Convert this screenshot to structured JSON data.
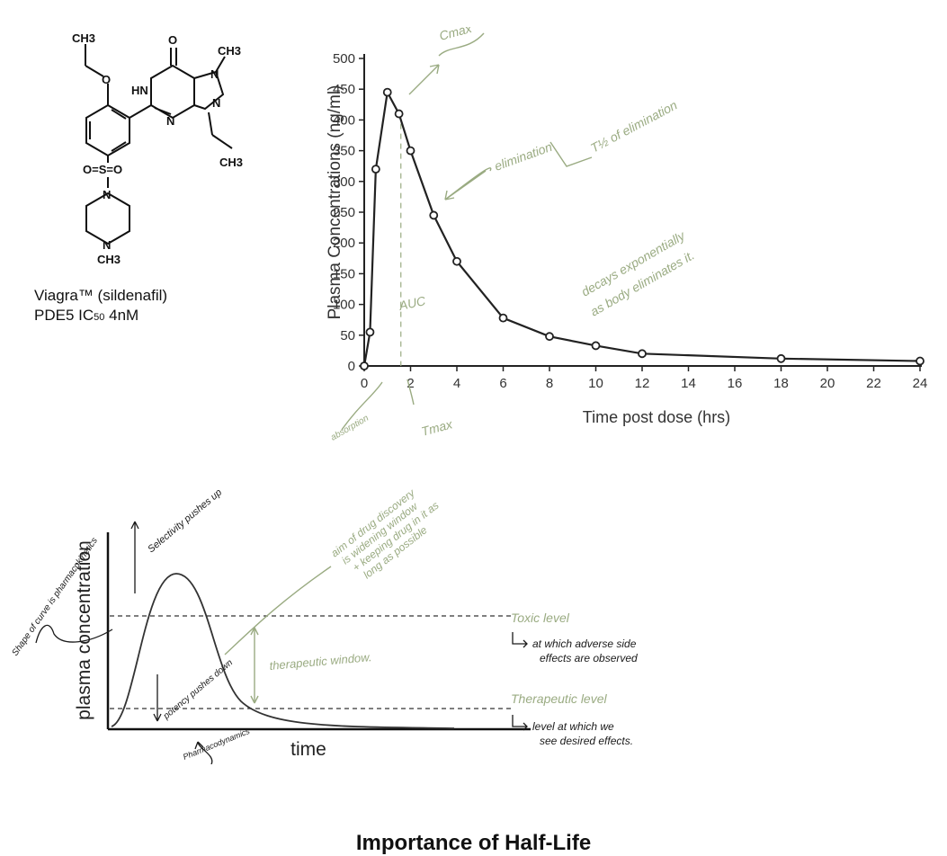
{
  "molecule": {
    "caption_line1": "Viagra™ (sildenafil)",
    "caption_line2_prefix": "PDE5 IC",
    "caption_line2_sub": "50",
    "caption_line2_suffix": " 4nM",
    "atoms": {
      "ch3_top": "CH3",
      "o_ether": "O",
      "o_carbonyl": "O",
      "hn": "HN",
      "n1": "N",
      "n2": "N",
      "n_methyl": "N",
      "ch3_methyl": "CH3",
      "ch3_propyl": "CH3",
      "sulfonyl": "O=S=O",
      "n_pip1": "N",
      "n_pip2": "N",
      "ch3_pip": "CH3"
    }
  },
  "pk_chart": {
    "annotations": {
      "cmax": "Cmax",
      "elimination": "elimination",
      "half_life": "T½ of elimination",
      "decays": "decays exponentially",
      "decays2": "as body eliminates it.",
      "auc": "AUC",
      "absorption": "absorption",
      "tmax": "Tmax"
    }
  },
  "chart_data": [
    {
      "type": "line",
      "title": "",
      "xlabel": "Time post dose (hrs)",
      "ylabel": "Plasma Concentrations (ng/ml)",
      "xlim": [
        0,
        24
      ],
      "ylim": [
        0,
        500
      ],
      "xticks": [
        0,
        2,
        4,
        6,
        8,
        10,
        12,
        14,
        16,
        18,
        20,
        22,
        24
      ],
      "yticks": [
        0,
        50,
        100,
        150,
        200,
        250,
        300,
        350,
        400,
        450,
        500
      ],
      "grid": false,
      "x": [
        0,
        0.25,
        0.5,
        1,
        1.5,
        2,
        3,
        4,
        6,
        8,
        10,
        12,
        18,
        24
      ],
      "y": [
        0,
        55,
        320,
        445,
        410,
        350,
        245,
        170,
        78,
        48,
        33,
        20,
        12,
        8
      ]
    },
    {
      "type": "line",
      "xlabel": "time",
      "ylabel": "plasma concentration",
      "grid": false,
      "levels": [
        {
          "name": "Toxic level",
          "note1": "at which adverse side",
          "note2": "effects are observed"
        },
        {
          "name": "Therapeutic level",
          "note1": "level at which we",
          "note2": "see desired effects."
        }
      ],
      "annotations": {
        "therapeutic_window": "therapeutic window.",
        "selectivity": "Selectivity pushes up",
        "shape": "Shape of curve is pharmacokinetics",
        "potency": "potency pushes down",
        "pharmacodynamics": "Pharmacodynamics",
        "aim1": "aim of drug discovery",
        "aim2": "is widening window",
        "aim3": "+ keeping drug in it as",
        "aim4": "long as possible"
      }
    }
  ],
  "footer": {
    "title": "Importance of Half-Life"
  },
  "colors": {
    "ink": "#222222",
    "annotation_green": "#9aab82",
    "pen_dark": "#1a1a1a"
  }
}
